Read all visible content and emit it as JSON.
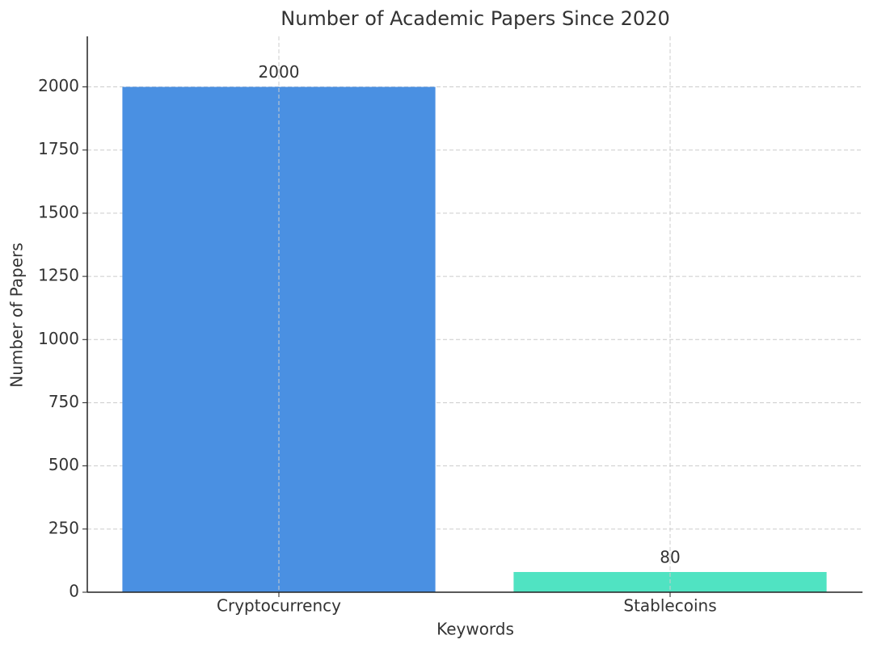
{
  "chart_data": {
    "type": "bar",
    "title": "Number of Academic Papers Since 2020",
    "x_label": "Keywords",
    "y_label": "Number of Papers",
    "categories": [
      "Cryptocurrency",
      "Stablecoins"
    ],
    "values": [
      2000,
      80
    ],
    "colors": [
      "#4a90e2",
      "#50e3c2"
    ],
    "ylim": [
      0,
      2200
    ],
    "yticks": [
      0,
      250,
      500,
      750,
      1000,
      1250,
      1500,
      1750,
      2000
    ],
    "grid": true
  }
}
